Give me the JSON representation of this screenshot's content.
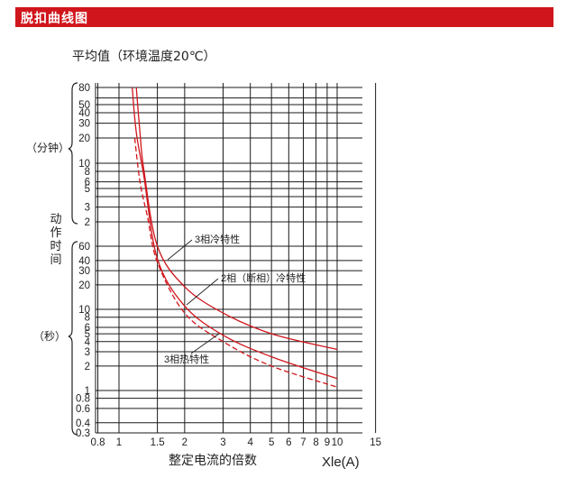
{
  "header": {
    "title": "脱扣曲线图"
  },
  "subtitle": "平均值（环境温度20℃）",
  "colors": {
    "header_bg": "#d0161c",
    "curve": "#d0161c",
    "grid": "#1a1a1a"
  },
  "chart_data": {
    "type": "line",
    "x_scale": "log",
    "xlabel": "整定电流的倍数",
    "xunit": "Xle(A)",
    "x_ticks": [
      0.8,
      1,
      1.5,
      2,
      3,
      4,
      5,
      6,
      7,
      8,
      9,
      10,
      15
    ],
    "x_tick_labels": [
      "0.8",
      "1",
      "1.5",
      "2",
      "3",
      "4",
      "5",
      "6",
      "7",
      "8",
      "9",
      "10",
      "15"
    ],
    "ylabel": "动作时间",
    "y_minutes_label": "（分钟）",
    "y_seconds_label": "（秒）",
    "y_minutes_ticks": [
      "80",
      "50",
      "40",
      "30",
      "20",
      "10",
      "8",
      "6",
      "5",
      "3",
      "2"
    ],
    "y_seconds_ticks": [
      "60",
      "40",
      "30",
      "20",
      "10",
      "8",
      "6",
      "5",
      "4",
      "3",
      "2",
      "1",
      "0.8",
      "0.6",
      "0.4",
      "0.3"
    ],
    "annotations": [
      "3相冷特性",
      "2相（断相）冷特性",
      "3相热特性"
    ],
    "series": [
      {
        "style": "solid",
        "x": [
          1.2,
          1.25,
          1.3,
          1.5,
          2,
          3,
          5,
          10
        ],
        "y_seconds": [
          4800,
          1300,
          500,
          60,
          19,
          9,
          5,
          3.2
        ]
      },
      {
        "style": "solid",
        "x": [
          1.15,
          1.2,
          1.3,
          1.5,
          2,
          3,
          5,
          10
        ],
        "y_seconds": [
          4800,
          1400,
          420,
          42,
          11,
          4.8,
          2.6,
          1.4
        ]
      },
      {
        "style": "dashed",
        "x": [
          1.18,
          1.25,
          1.35,
          1.5,
          2,
          3,
          5,
          10
        ],
        "y_seconds": [
          1200,
          350,
          140,
          38,
          9,
          4,
          2,
          1.1
        ]
      }
    ]
  }
}
